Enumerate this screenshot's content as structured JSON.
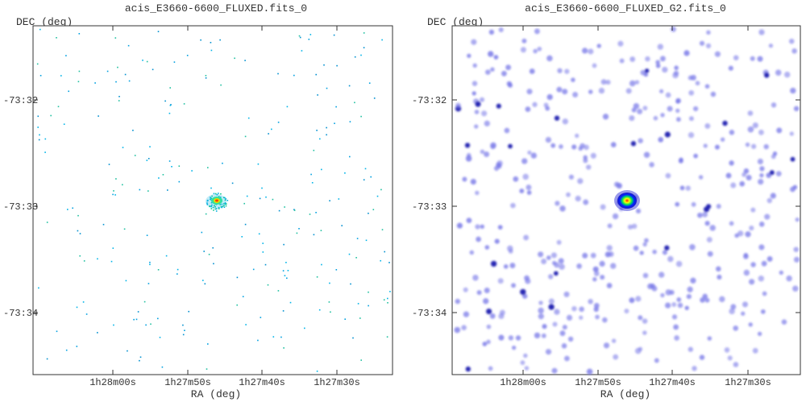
{
  "figures": [
    {
      "title": "acis_E3660-6600_FLUXED.fits_0",
      "xlabel": "RA (deg)",
      "ylabel": "DEC (deg)",
      "xticks": [
        "1h28m00s",
        "1h27m50s",
        "1h27m40s",
        "1h27m30s"
      ],
      "yticks": [
        "-73:32",
        "-73:33",
        "-73:34"
      ]
    },
    {
      "title": "acis_E3660-6600_FLUXED_G2.fits_0",
      "xlabel": "RA (deg)",
      "ylabel": "DEC (deg)",
      "xticks": [
        "1h28m00s",
        "1h27m50s",
        "1h27m40s",
        "1h27m30s"
      ],
      "yticks": [
        "-73:32",
        "-73:33",
        "-73:34"
      ]
    }
  ],
  "chart_data": [
    {
      "type": "heatmap",
      "title": "acis_E3660-6600_FLUXED.fits_0",
      "xlabel": "RA (deg)",
      "ylabel": "DEC (deg)",
      "x_ticks": [
        "1h28m00s",
        "1h27m50s",
        "1h27m40s",
        "1h27m30s"
      ],
      "y_ticks": [
        "-73:32",
        "-73:33",
        "-73:34"
      ],
      "description": "sparse single-pixel events with a compact source near center",
      "colormap": [
        "#00a0e0",
        "#00e0a0",
        "#e0e000",
        "#ff4000"
      ],
      "source": {
        "ra": "1h27m46s",
        "dec": "-73:32:57"
      }
    },
    {
      "type": "heatmap",
      "title": "acis_E3660-6600_FLUXED_G2.fits_0",
      "xlabel": "RA (deg)",
      "ylabel": "DEC (deg)",
      "x_ticks": [
        "1h28m00s",
        "1h27m50s",
        "1h27m40s",
        "1h27m30s"
      ],
      "y_ticks": [
        "-73:32",
        "-73:33",
        "-73:34"
      ],
      "description": "gaussian-smoothed events with a bright source near center",
      "colormap": [
        "#9a9af0",
        "#3030d0",
        "#00ff60",
        "#ffff00",
        "#ff2000"
      ],
      "source": {
        "ra": "1h27m46s",
        "dec": "-73:32:57"
      }
    }
  ]
}
